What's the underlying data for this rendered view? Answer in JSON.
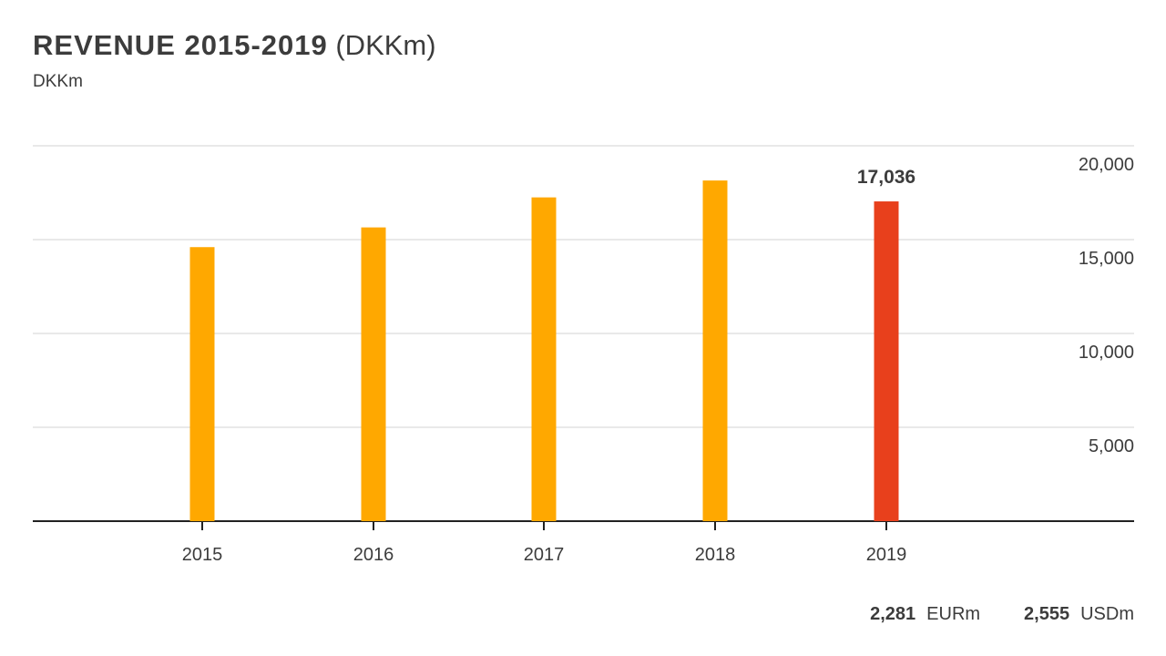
{
  "header": {
    "title_main": "REVENUE 2015-2019",
    "title_unit": "(DKKm)",
    "subtitle": "DKKm"
  },
  "chart_data": {
    "type": "bar",
    "categories": [
      "2015",
      "2016",
      "2017",
      "2018",
      "2019"
    ],
    "values": [
      14600,
      15650,
      17250,
      18150,
      17036
    ],
    "ylim": [
      0,
      20000
    ],
    "yticks": [
      5000,
      10000,
      15000,
      20000
    ],
    "ytick_labels": [
      "5,000",
      "10,000",
      "15,000",
      "20,000"
    ],
    "y_axis_position": "right",
    "grid": true,
    "highlight_label": "17,036",
    "highlight_index": 4,
    "colors": {
      "bar": "#FFA800",
      "highlight": "#E8401C",
      "grid": "#e2e2e2",
      "axis": "#222222"
    }
  },
  "footer": {
    "items": [
      {
        "value": "2,281",
        "unit": "EURm"
      },
      {
        "value": "2,555",
        "unit": "USDm"
      }
    ]
  }
}
